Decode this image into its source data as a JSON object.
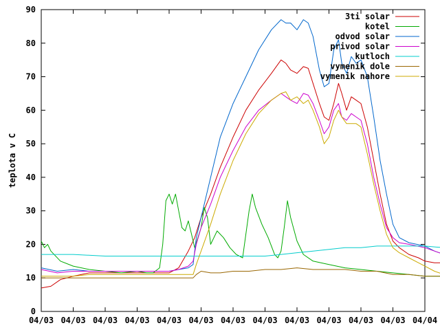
{
  "chart_data": {
    "type": "line",
    "title": "",
    "xlabel": "",
    "ylabel": "teplota v C",
    "ylim": [
      0,
      90
    ],
    "yticks": [
      0,
      10,
      20,
      30,
      40,
      50,
      60,
      70,
      80,
      90
    ],
    "xlim": [
      0,
      12
    ],
    "xticks": [
      0,
      1,
      2,
      3,
      4,
      5,
      6,
      7,
      8,
      9,
      10,
      11,
      12
    ],
    "xtick_labels": [
      "04/03",
      "04/03",
      "04/03",
      "04/03",
      "04/03",
      "04/03",
      "04/03",
      "04/03",
      "04/03",
      "04/03",
      "04/03",
      "04/03",
      "04/04"
    ],
    "grid": false,
    "legend_position": "top-right",
    "series": [
      {
        "name": "3ti solar",
        "color": "#cc0000",
        "points": [
          [
            0,
            7
          ],
          [
            0.3,
            7.5
          ],
          [
            0.6,
            9.5
          ],
          [
            1,
            10.5
          ],
          [
            1.5,
            11.5
          ],
          [
            2,
            11.5
          ],
          [
            2.5,
            11.5
          ],
          [
            3,
            11.5
          ],
          [
            3.5,
            11.5
          ],
          [
            4,
            11.5
          ],
          [
            4.3,
            13
          ],
          [
            4.6,
            18
          ],
          [
            4.8,
            22
          ],
          [
            5,
            28
          ],
          [
            5.3,
            35
          ],
          [
            5.6,
            43
          ],
          [
            6,
            52
          ],
          [
            6.4,
            60
          ],
          [
            6.8,
            66
          ],
          [
            7.2,
            71
          ],
          [
            7.5,
            75
          ],
          [
            7.65,
            74
          ],
          [
            7.8,
            72
          ],
          [
            8,
            71
          ],
          [
            8.2,
            73
          ],
          [
            8.35,
            72.5
          ],
          [
            8.5,
            68
          ],
          [
            8.7,
            62
          ],
          [
            8.85,
            58
          ],
          [
            9,
            57
          ],
          [
            9.15,
            62
          ],
          [
            9.3,
            68
          ],
          [
            9.4,
            65
          ],
          [
            9.55,
            60
          ],
          [
            9.7,
            64
          ],
          [
            9.85,
            63
          ],
          [
            10,
            62
          ],
          [
            10.2,
            55
          ],
          [
            10.4,
            45
          ],
          [
            10.6,
            35
          ],
          [
            10.8,
            26
          ],
          [
            11,
            21
          ],
          [
            11.2,
            19
          ],
          [
            11.5,
            17
          ],
          [
            11.8,
            16
          ],
          [
            12,
            15
          ],
          [
            12.3,
            14.5
          ],
          [
            12.6,
            14.5
          ]
        ]
      },
      {
        "name": "kotel",
        "color": "#00aa00",
        "points": [
          [
            0,
            21
          ],
          [
            0.1,
            19
          ],
          [
            0.2,
            20
          ],
          [
            0.3,
            18
          ],
          [
            0.6,
            15
          ],
          [
            1,
            13.5
          ],
          [
            1.5,
            12.5
          ],
          [
            2,
            12
          ],
          [
            2.5,
            11.5
          ],
          [
            3,
            12
          ],
          [
            3.3,
            11.5
          ],
          [
            3.5,
            11.5
          ],
          [
            3.7,
            13
          ],
          [
            3.8,
            20
          ],
          [
            3.9,
            33
          ],
          [
            4,
            35
          ],
          [
            4.1,
            32
          ],
          [
            4.2,
            35
          ],
          [
            4.3,
            30
          ],
          [
            4.4,
            25
          ],
          [
            4.5,
            24
          ],
          [
            4.6,
            27
          ],
          [
            4.7,
            23
          ],
          [
            4.8,
            19
          ],
          [
            4.9,
            22
          ],
          [
            5,
            25
          ],
          [
            5.1,
            31
          ],
          [
            5.2,
            28
          ],
          [
            5.3,
            20
          ],
          [
            5.4,
            22
          ],
          [
            5.5,
            24
          ],
          [
            5.7,
            22
          ],
          [
            5.9,
            19
          ],
          [
            6.1,
            17
          ],
          [
            6.3,
            16
          ],
          [
            6.5,
            30
          ],
          [
            6.6,
            35
          ],
          [
            6.7,
            31
          ],
          [
            6.9,
            26
          ],
          [
            7.1,
            22
          ],
          [
            7.3,
            17
          ],
          [
            7.4,
            16
          ],
          [
            7.5,
            18
          ],
          [
            7.6,
            25
          ],
          [
            7.7,
            33
          ],
          [
            7.8,
            28
          ],
          [
            8,
            21
          ],
          [
            8.2,
            17
          ],
          [
            8.5,
            15
          ],
          [
            9,
            14
          ],
          [
            9.5,
            13
          ],
          [
            10,
            12.5
          ],
          [
            10.5,
            12
          ],
          [
            11,
            11.5
          ],
          [
            11.5,
            11
          ],
          [
            12,
            10.5
          ],
          [
            12.6,
            10.5
          ]
        ]
      },
      {
        "name": "odvod solar",
        "color": "#0066cc",
        "points": [
          [
            0,
            13
          ],
          [
            0.5,
            12
          ],
          [
            1,
            12.5
          ],
          [
            1.5,
            12
          ],
          [
            2,
            12
          ],
          [
            2.5,
            12
          ],
          [
            3,
            12
          ],
          [
            3.5,
            12
          ],
          [
            4,
            12
          ],
          [
            4.3,
            12.5
          ],
          [
            4.6,
            13
          ],
          [
            4.75,
            14
          ],
          [
            4.85,
            22
          ],
          [
            5,
            28
          ],
          [
            5.3,
            40
          ],
          [
            5.6,
            52
          ],
          [
            6,
            62
          ],
          [
            6.4,
            70
          ],
          [
            6.8,
            78
          ],
          [
            7.2,
            84
          ],
          [
            7.5,
            87
          ],
          [
            7.65,
            86
          ],
          [
            7.8,
            86
          ],
          [
            8,
            84
          ],
          [
            8.2,
            87
          ],
          [
            8.35,
            86
          ],
          [
            8.5,
            82
          ],
          [
            8.7,
            72
          ],
          [
            8.85,
            67
          ],
          [
            9,
            68
          ],
          [
            9.15,
            78
          ],
          [
            9.3,
            81
          ],
          [
            9.4,
            74
          ],
          [
            9.55,
            71
          ],
          [
            9.7,
            76
          ],
          [
            9.85,
            74
          ],
          [
            10,
            75
          ],
          [
            10.2,
            70
          ],
          [
            10.4,
            58
          ],
          [
            10.6,
            45
          ],
          [
            10.8,
            35
          ],
          [
            11,
            26
          ],
          [
            11.2,
            22
          ],
          [
            11.5,
            20.5
          ],
          [
            12,
            19.5
          ],
          [
            12.3,
            18
          ],
          [
            12.6,
            17
          ]
        ]
      },
      {
        "name": "privod solar",
        "color": "#cc00cc",
        "points": [
          [
            0,
            12.5
          ],
          [
            0.5,
            11.5
          ],
          [
            1,
            12
          ],
          [
            1.5,
            12
          ],
          [
            2,
            12
          ],
          [
            2.5,
            12
          ],
          [
            3,
            12
          ],
          [
            3.5,
            12
          ],
          [
            4,
            12
          ],
          [
            4.3,
            12.5
          ],
          [
            4.6,
            13.5
          ],
          [
            4.75,
            15
          ],
          [
            4.85,
            20
          ],
          [
            5,
            25
          ],
          [
            5.3,
            32
          ],
          [
            5.6,
            40
          ],
          [
            6,
            48
          ],
          [
            6.4,
            55
          ],
          [
            6.8,
            60
          ],
          [
            7.2,
            63
          ],
          [
            7.5,
            65
          ],
          [
            7.65,
            64
          ],
          [
            7.8,
            63
          ],
          [
            8,
            62
          ],
          [
            8.2,
            65
          ],
          [
            8.35,
            64.5
          ],
          [
            8.5,
            62
          ],
          [
            8.7,
            57
          ],
          [
            8.85,
            53
          ],
          [
            9,
            55
          ],
          [
            9.15,
            60
          ],
          [
            9.3,
            62
          ],
          [
            9.4,
            58
          ],
          [
            9.55,
            57
          ],
          [
            9.7,
            59
          ],
          [
            9.85,
            58
          ],
          [
            10,
            57
          ],
          [
            10.2,
            50
          ],
          [
            10.4,
            40
          ],
          [
            10.6,
            32
          ],
          [
            10.8,
            25
          ],
          [
            11,
            22
          ],
          [
            11.2,
            20.5
          ],
          [
            11.5,
            20
          ],
          [
            12,
            19
          ],
          [
            12.3,
            18
          ],
          [
            12.6,
            17
          ]
        ]
      },
      {
        "name": "kutloch",
        "color": "#00cccc",
        "points": [
          [
            0,
            17
          ],
          [
            1,
            17
          ],
          [
            2,
            16.5
          ],
          [
            3,
            16.5
          ],
          [
            4,
            16.5
          ],
          [
            5,
            16.5
          ],
          [
            6,
            16.5
          ],
          [
            7,
            16.5
          ],
          [
            7.5,
            17
          ],
          [
            8,
            17.5
          ],
          [
            8.5,
            18
          ],
          [
            9,
            18.5
          ],
          [
            9.5,
            19
          ],
          [
            10,
            19
          ],
          [
            10.5,
            19.5
          ],
          [
            11,
            19.5
          ],
          [
            11.5,
            19.5
          ],
          [
            12,
            19.5
          ],
          [
            12.6,
            19
          ]
        ]
      },
      {
        "name": "vymenik dole",
        "color": "#996600",
        "points": [
          [
            0,
            10
          ],
          [
            1,
            10
          ],
          [
            2,
            10
          ],
          [
            3,
            10
          ],
          [
            4,
            10
          ],
          [
            4.5,
            10
          ],
          [
            4.75,
            10
          ],
          [
            4.85,
            11
          ],
          [
            5,
            12
          ],
          [
            5.3,
            11.5
          ],
          [
            5.6,
            11.5
          ],
          [
            6,
            12
          ],
          [
            6.5,
            12
          ],
          [
            7,
            12.5
          ],
          [
            7.5,
            12.5
          ],
          [
            8,
            13
          ],
          [
            8.5,
            12.5
          ],
          [
            9,
            12.5
          ],
          [
            9.5,
            12.5
          ],
          [
            10,
            12
          ],
          [
            10.5,
            12
          ],
          [
            11,
            11
          ],
          [
            11.5,
            11
          ],
          [
            12,
            10.5
          ],
          [
            12.6,
            10.5
          ]
        ]
      },
      {
        "name": "vymenik nahore",
        "color": "#ccaa00",
        "points": [
          [
            0,
            10.5
          ],
          [
            0.5,
            10.5
          ],
          [
            1,
            10.5
          ],
          [
            1.5,
            11
          ],
          [
            2,
            11
          ],
          [
            2.5,
            11
          ],
          [
            3,
            11
          ],
          [
            3.5,
            11
          ],
          [
            4,
            11
          ],
          [
            4.5,
            11
          ],
          [
            4.75,
            11
          ],
          [
            4.85,
            14
          ],
          [
            5,
            18
          ],
          [
            5.3,
            26
          ],
          [
            5.6,
            35
          ],
          [
            6,
            45
          ],
          [
            6.4,
            53
          ],
          [
            6.8,
            59
          ],
          [
            7.2,
            63
          ],
          [
            7.5,
            65
          ],
          [
            7.65,
            65.5
          ],
          [
            7.8,
            63
          ],
          [
            8,
            64
          ],
          [
            8.2,
            62
          ],
          [
            8.35,
            63
          ],
          [
            8.5,
            60
          ],
          [
            8.7,
            55
          ],
          [
            8.85,
            50
          ],
          [
            9,
            52
          ],
          [
            9.15,
            57
          ],
          [
            9.3,
            60
          ],
          [
            9.4,
            58
          ],
          [
            9.55,
            56
          ],
          [
            9.7,
            56
          ],
          [
            9.85,
            56
          ],
          [
            10,
            55
          ],
          [
            10.2,
            47
          ],
          [
            10.4,
            38
          ],
          [
            10.6,
            30
          ],
          [
            10.8,
            23
          ],
          [
            11,
            19
          ],
          [
            11.2,
            17.5
          ],
          [
            11.5,
            16
          ],
          [
            12,
            13.5
          ],
          [
            12.3,
            12
          ],
          [
            12.6,
            11
          ]
        ]
      }
    ]
  }
}
